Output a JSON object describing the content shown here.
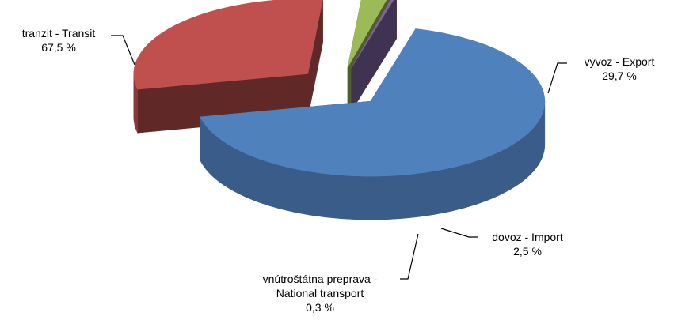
{
  "chart_data": {
    "type": "pie3d",
    "categories": [
      "tranzit - Transit",
      "vývoz - Export",
      "dovoz - Import",
      "vnútroštátna preprava - National transport"
    ],
    "values": [
      67.5,
      29.7,
      2.5,
      0.3
    ],
    "value_labels": [
      "67,5 %",
      "29,7 %",
      "2,5 %",
      "0,3 %"
    ],
    "colors": [
      "#4f81bd",
      "#c0504d",
      "#9bbb59",
      "#8064a2"
    ],
    "exploded": true
  }
}
